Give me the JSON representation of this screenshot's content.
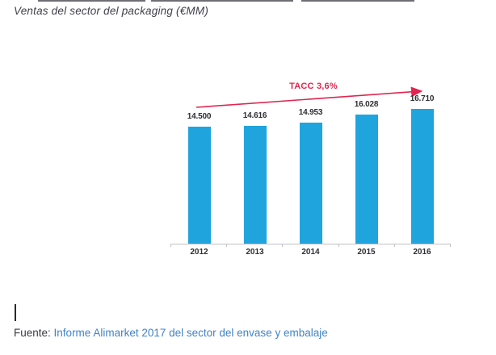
{
  "page": {
    "title": "Ventas del sector del packaging (€MM)",
    "source_label": "Fuente:",
    "source_link": "Informe Alimarket 2017 del sector del envase y embalaje"
  },
  "chart_data": {
    "type": "bar",
    "title": "Ventas del sector del packaging (€MM)",
    "categories": [
      "2012",
      "2013",
      "2014",
      "2015",
      "2016"
    ],
    "values": [
      14500,
      14616,
      14953,
      16028,
      16710
    ],
    "value_labels": [
      "14.500",
      "14.616",
      "14.953",
      "16.028",
      "16.710"
    ],
    "annotation": {
      "type": "trend-arrow",
      "label": "TACC 3,6%"
    },
    "xlabel": "",
    "ylabel": "",
    "ylim": [
      0,
      20700
    ],
    "grid": false,
    "legend": false,
    "bar_color": "#1FA4DD",
    "arrow_color": "#E0264E",
    "axis_color": "#C2C2C6",
    "label_color": "#2E2E33"
  },
  "colors": {
    "link": "#4183C4",
    "body_text": "#3B3B42",
    "title_text": "#3F3F4A"
  }
}
